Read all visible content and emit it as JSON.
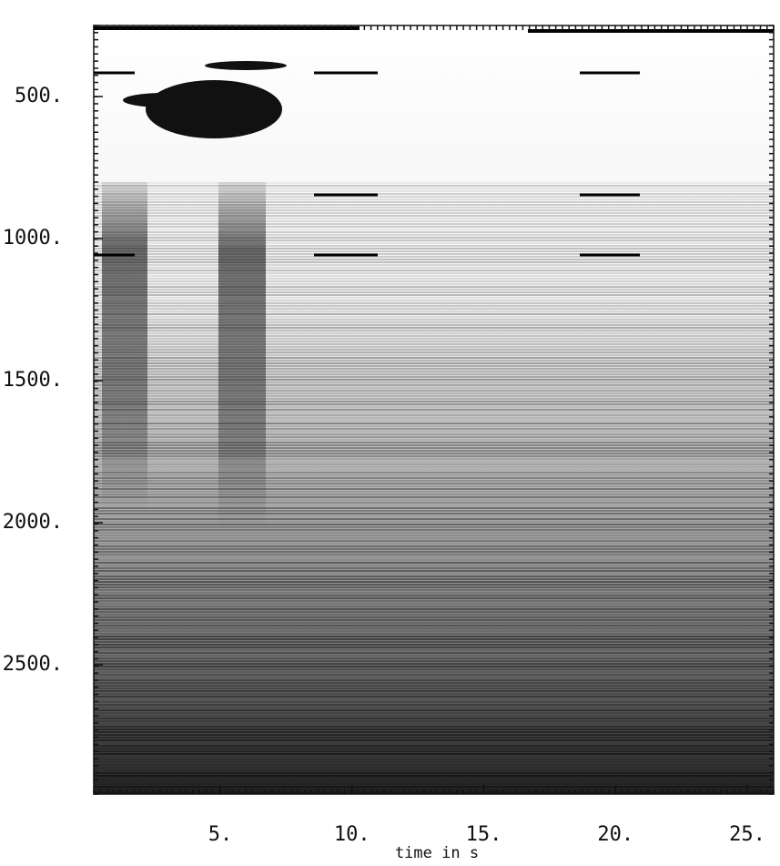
{
  "chart_data": {
    "type": "spectrogram",
    "xlabel": "time in s",
    "xlim": [
      0.2,
      26
    ],
    "xticks": [
      {
        "value": 5,
        "label": "5."
      },
      {
        "value": 10,
        "label": "10."
      },
      {
        "value": 15,
        "label": "15."
      },
      {
        "value": 20,
        "label": "20."
      },
      {
        "value": 25,
        "label": "25."
      }
    ],
    "ylim": [
      250,
      2955
    ],
    "yticks": [
      {
        "value": 500,
        "label": "500."
      },
      {
        "value": 1000,
        "label": "1000."
      },
      {
        "value": 1500,
        "label": "1500."
      },
      {
        "value": 2000,
        "label": "2000."
      },
      {
        "value": 2500,
        "label": "2500."
      }
    ],
    "y_inverted": true
  }
}
